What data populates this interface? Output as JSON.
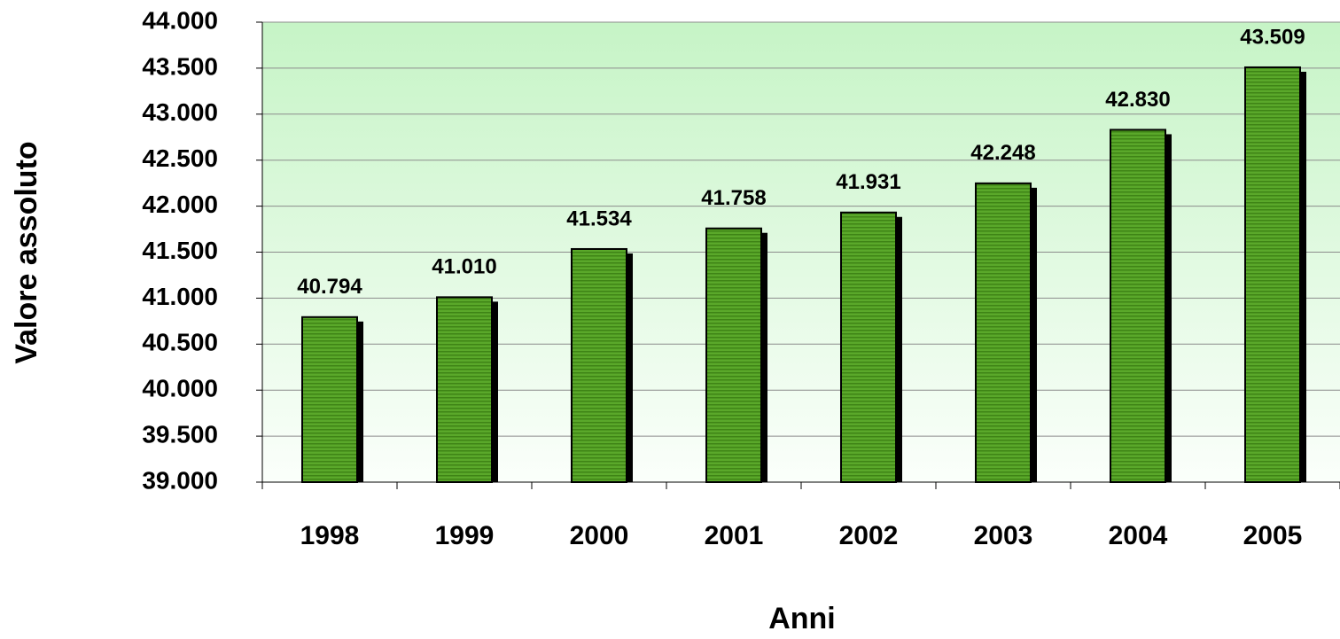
{
  "chart_data": {
    "type": "bar",
    "x_label": "Anni",
    "y_label": "Valore assoluto",
    "categories": [
      "1998",
      "1999",
      "2000",
      "2001",
      "2002",
      "2003",
      "2004",
      "2005"
    ],
    "values": [
      40794,
      41010,
      41534,
      41758,
      41931,
      42248,
      42830,
      43509
    ],
    "value_labels": [
      "40.794",
      "41.010",
      "41.534",
      "41.758",
      "41.931",
      "42.248",
      "42.830",
      "43.509"
    ],
    "color": "#4f9a1f",
    "ylim": [
      39000,
      44000
    ],
    "yticks": [
      {
        "value": 39000,
        "label": "39.000"
      },
      {
        "value": 39500,
        "label": "39.500"
      },
      {
        "value": 40000,
        "label": "40.000"
      },
      {
        "value": 40500,
        "label": "40.500"
      },
      {
        "value": 41000,
        "label": "41.000"
      },
      {
        "value": 41500,
        "label": "41.500"
      },
      {
        "value": 42000,
        "label": "42.000"
      },
      {
        "value": 42500,
        "label": "42.500"
      },
      {
        "value": 43000,
        "label": "43.000"
      },
      {
        "value": 43500,
        "label": "43.500"
      },
      {
        "value": 44000,
        "label": "44.000"
      }
    ],
    "grid": true
  }
}
